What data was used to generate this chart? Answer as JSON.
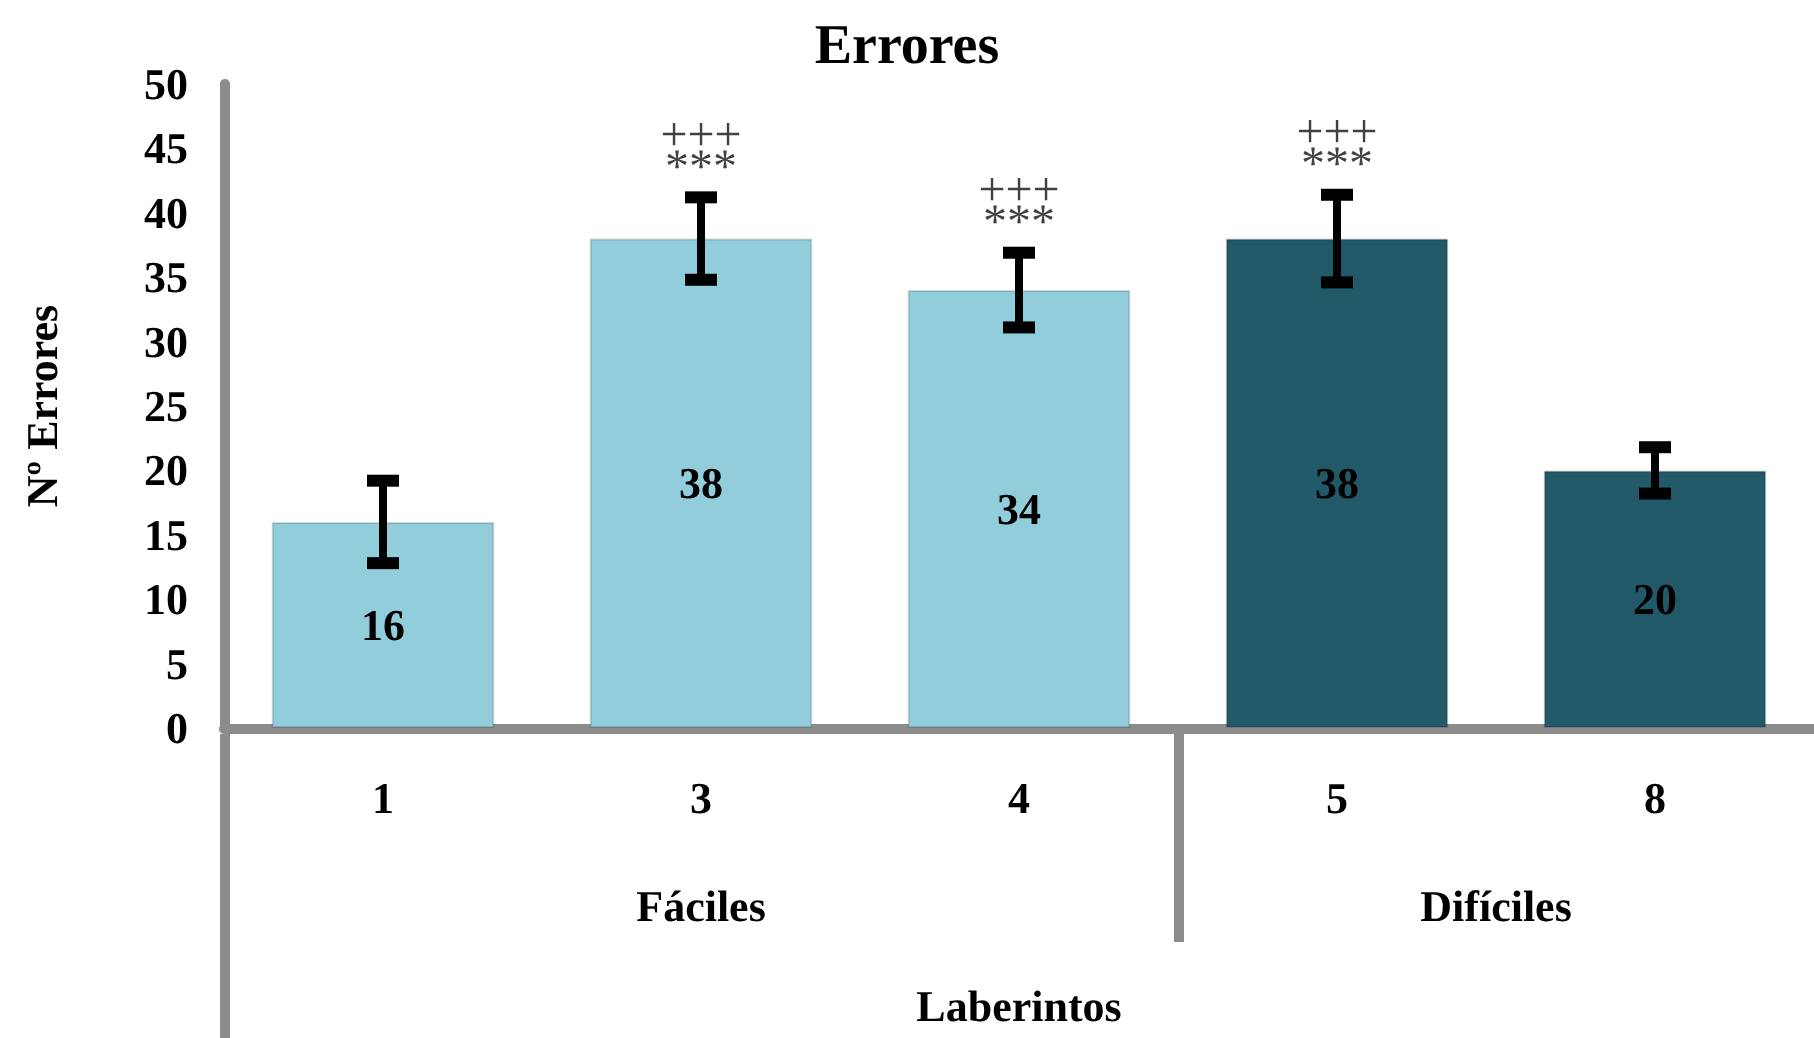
{
  "chart_data": {
    "type": "bar",
    "title": "Errores",
    "xlabel": "Laberintos",
    "ylabel": "Nº Errores",
    "categories": [
      "1",
      "3",
      "4",
      "5",
      "8"
    ],
    "values": [
      16,
      38,
      34,
      38,
      20
    ],
    "colors": [
      "#92cddc",
      "#92cddc",
      "#92cddc",
      "#215968",
      "#215968"
    ],
    "errors": [
      3.2,
      3.2,
      2.9,
      3.4,
      1.8
    ],
    "data_labels": true,
    "ylim": [
      0,
      50
    ],
    "yticks": [
      0,
      5,
      10,
      15,
      20,
      25,
      30,
      35,
      40,
      45,
      50
    ],
    "annotations": [
      "+++",
      "***",
      "+++",
      "***",
      "+++",
      "***",
      "Fáciles",
      "Difíciles"
    ]
  }
}
